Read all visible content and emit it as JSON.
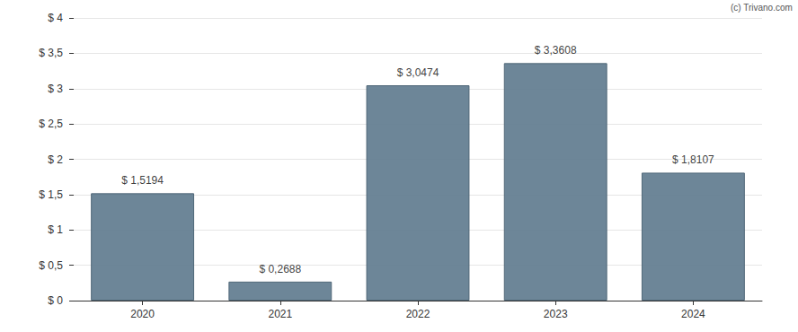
{
  "chart_data": {
    "type": "bar",
    "categories": [
      "2020",
      "2021",
      "2022",
      "2023",
      "2024"
    ],
    "values": [
      1.5194,
      0.2688,
      3.0474,
      3.3608,
      1.8107
    ],
    "value_labels": [
      "$ 1,5194",
      "$ 0,2688",
      "$ 3,0474",
      "$ 3,3608",
      "$ 1,8107"
    ],
    "color": "#657f92",
    "ylim": [
      0,
      4
    ],
    "yticks": [
      {
        "value": 0,
        "label": "$ 0"
      },
      {
        "value": 0.5,
        "label": "$ 0,5"
      },
      {
        "value": 1,
        "label": "$ 1"
      },
      {
        "value": 1.5,
        "label": "$ 1,5"
      },
      {
        "value": 2,
        "label": "$ 2"
      },
      {
        "value": 2.5,
        "label": "$ 2,5"
      },
      {
        "value": 3,
        "label": "$ 3"
      },
      {
        "value": 3.5,
        "label": "$ 3,5"
      },
      {
        "value": 4,
        "label": "$ 4"
      }
    ],
    "grid": true,
    "data_labels": true,
    "annotations": [
      "(c) Trivano.com"
    ]
  }
}
